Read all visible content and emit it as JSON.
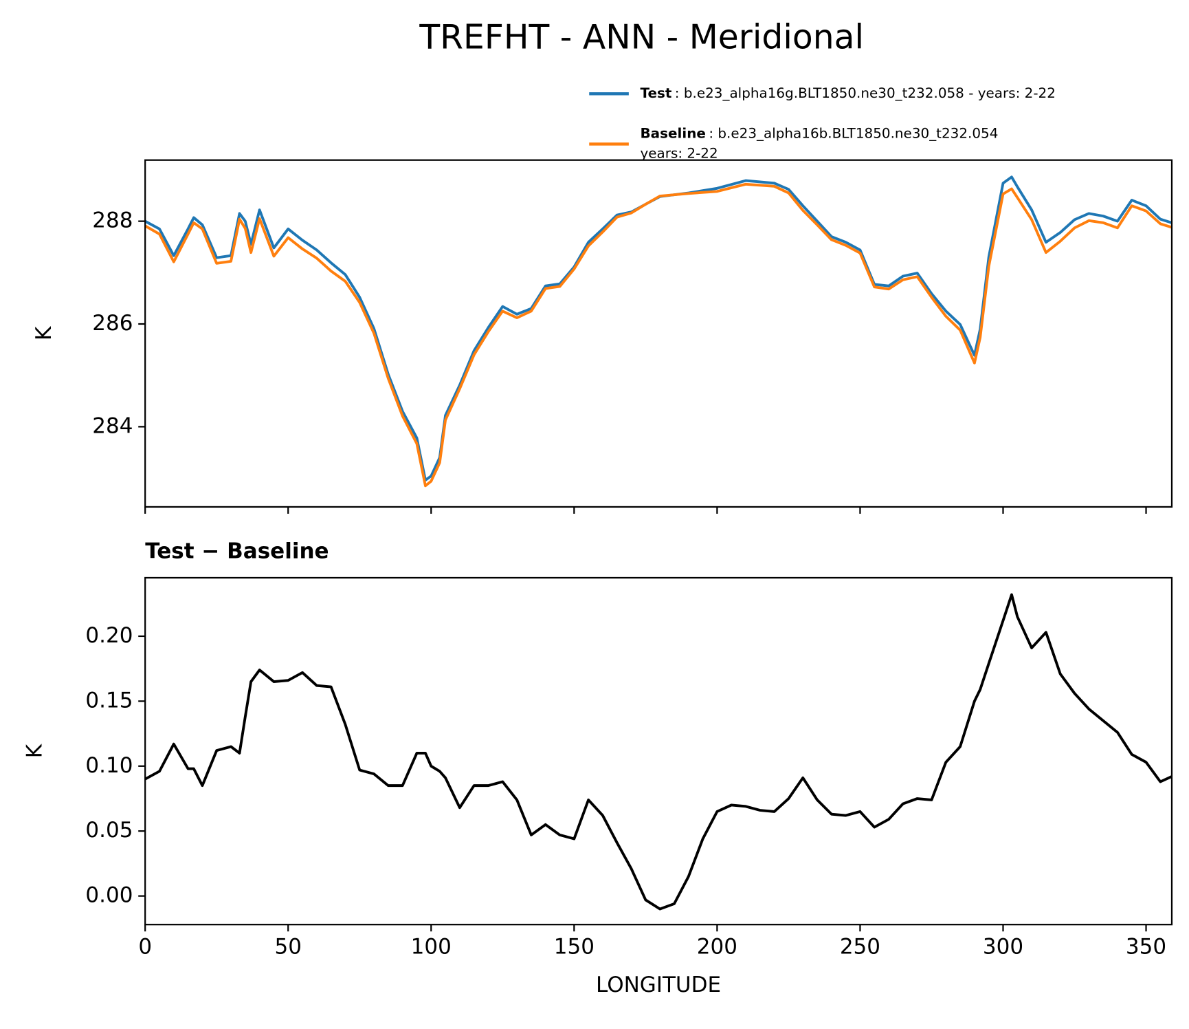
{
  "chart_data": [
    {
      "type": "line",
      "title": "TREFHT - ANN - Meridional",
      "ylabel": "K",
      "xlim": [
        0,
        359
      ],
      "xticks": [
        0,
        50,
        100,
        150,
        200,
        250,
        300,
        350
      ],
      "show_xtick_labels": false,
      "ylim": [
        282.44,
        289.19
      ],
      "yticks": [
        284,
        286,
        288
      ],
      "x": [
        0,
        5,
        10,
        15,
        17,
        20,
        25,
        30,
        33,
        35,
        37,
        40,
        45,
        50,
        55,
        60,
        65,
        70,
        75,
        80,
        85,
        90,
        95,
        98,
        100,
        103,
        105,
        110,
        115,
        120,
        125,
        130,
        135,
        140,
        145,
        150,
        155,
        160,
        165,
        170,
        175,
        180,
        190,
        200,
        210,
        220,
        225,
        230,
        235,
        240,
        245,
        250,
        255,
        260,
        265,
        270,
        275,
        280,
        285,
        290,
        292,
        295,
        300,
        303,
        305,
        310,
        315,
        320,
        325,
        330,
        335,
        340,
        345,
        350,
        355,
        359
      ],
      "series": [
        {
          "name": "Test",
          "case_lines": [
            ": b.e23_alpha16g.BLT1850.ne30_t232.058 - years: 2-22"
          ],
          "color": "#1f77b4",
          "values": [
            288.0,
            287.85,
            287.33,
            287.85,
            288.07,
            287.93,
            287.29,
            287.33,
            288.15,
            288.0,
            287.55,
            288.22,
            287.48,
            287.85,
            287.63,
            287.44,
            287.19,
            286.96,
            286.52,
            285.91,
            285.02,
            284.3,
            283.78,
            282.96,
            283.04,
            283.4,
            284.22,
            284.81,
            285.48,
            285.93,
            286.34,
            286.19,
            286.3,
            286.74,
            286.78,
            287.11,
            287.59,
            287.85,
            288.12,
            288.18,
            288.33,
            288.48,
            288.55,
            288.64,
            288.79,
            288.74,
            288.62,
            288.3,
            288.0,
            287.7,
            287.59,
            287.44,
            286.77,
            286.74,
            286.93,
            286.99,
            286.59,
            286.25,
            285.99,
            285.39,
            285.9,
            287.3,
            288.74,
            288.86,
            288.67,
            288.22,
            287.59,
            287.78,
            288.03,
            288.15,
            288.1,
            288.0,
            288.41,
            288.3,
            288.04,
            287.97
          ]
        },
        {
          "name": "Baseline",
          "case_lines": [
            ": b.e23_alpha16b.BLT1850.ne30_t232.054",
            "years: 2-22"
          ],
          "color": "#ff7f0e",
          "values": [
            287.91,
            287.75,
            287.21,
            287.75,
            287.97,
            287.85,
            287.18,
            287.22,
            288.04,
            287.86,
            287.39,
            288.05,
            287.32,
            287.68,
            287.46,
            287.28,
            287.03,
            286.83,
            286.42,
            285.82,
            284.94,
            284.21,
            283.67,
            282.85,
            282.94,
            283.3,
            284.13,
            284.74,
            285.4,
            285.85,
            286.25,
            286.12,
            286.25,
            286.69,
            286.73,
            287.07,
            287.52,
            287.79,
            288.08,
            288.16,
            288.33,
            288.49,
            288.54,
            288.58,
            288.72,
            288.68,
            288.55,
            288.21,
            287.93,
            287.64,
            287.53,
            287.38,
            286.72,
            286.68,
            286.86,
            286.92,
            286.52,
            286.15,
            285.88,
            285.24,
            285.74,
            287.12,
            288.53,
            288.63,
            288.46,
            288.03,
            287.39,
            287.61,
            287.87,
            288.01,
            287.97,
            287.87,
            288.3,
            288.2,
            287.95,
            287.88
          ]
        }
      ]
    },
    {
      "type": "line",
      "title": "Test − Baseline",
      "ylabel": "K",
      "xlabel": "LONGITUDE",
      "xlim": [
        0,
        359
      ],
      "xticks": [
        0,
        50,
        100,
        150,
        200,
        250,
        300,
        350
      ],
      "show_xtick_labels": true,
      "ylim": [
        -0.022,
        0.245
      ],
      "yticks": [
        {
          "value": 0,
          "label": "0.00"
        },
        0.05,
        {
          "value": 0.1,
          "label": "0.10"
        },
        0.15,
        {
          "value": 0.2,
          "label": "0.20"
        }
      ],
      "x": [
        0,
        5,
        10,
        15,
        17,
        20,
        25,
        30,
        33,
        35,
        37,
        40,
        45,
        50,
        55,
        60,
        65,
        70,
        75,
        80,
        85,
        90,
        95,
        98,
        100,
        103,
        105,
        110,
        115,
        120,
        125,
        130,
        135,
        140,
        145,
        150,
        155,
        160,
        165,
        170,
        175,
        180,
        185,
        190,
        195,
        200,
        205,
        210,
        215,
        220,
        225,
        230,
        235,
        240,
        245,
        250,
        255,
        260,
        265,
        270,
        275,
        280,
        285,
        290,
        292,
        295,
        300,
        303,
        305,
        310,
        315,
        320,
        325,
        330,
        335,
        340,
        345,
        350,
        355,
        359
      ],
      "series": [
        {
          "color": "#000000",
          "values": [
            0.09,
            0.096,
            0.117,
            0.098,
            0.098,
            0.085,
            0.112,
            0.115,
            0.11,
            0.138,
            0.165,
            0.174,
            0.165,
            0.166,
            0.172,
            0.162,
            0.161,
            0.132,
            0.097,
            0.094,
            0.085,
            0.085,
            0.11,
            0.11,
            0.1,
            0.096,
            0.091,
            0.068,
            0.085,
            0.085,
            0.088,
            0.074,
            0.047,
            0.055,
            0.047,
            0.044,
            0.074,
            0.062,
            0.041,
            0.021,
            -0.003,
            -0.01,
            -0.006,
            0.015,
            0.044,
            0.065,
            0.07,
            0.069,
            0.066,
            0.065,
            0.075,
            0.091,
            0.074,
            0.063,
            0.062,
            0.065,
            0.053,
            0.059,
            0.071,
            0.075,
            0.074,
            0.103,
            0.115,
            0.15,
            0.159,
            0.179,
            0.212,
            0.232,
            0.215,
            0.191,
            0.203,
            0.171,
            0.156,
            0.144,
            0.135,
            0.126,
            0.109,
            0.103,
            0.088,
            0.092
          ]
        }
      ]
    }
  ]
}
